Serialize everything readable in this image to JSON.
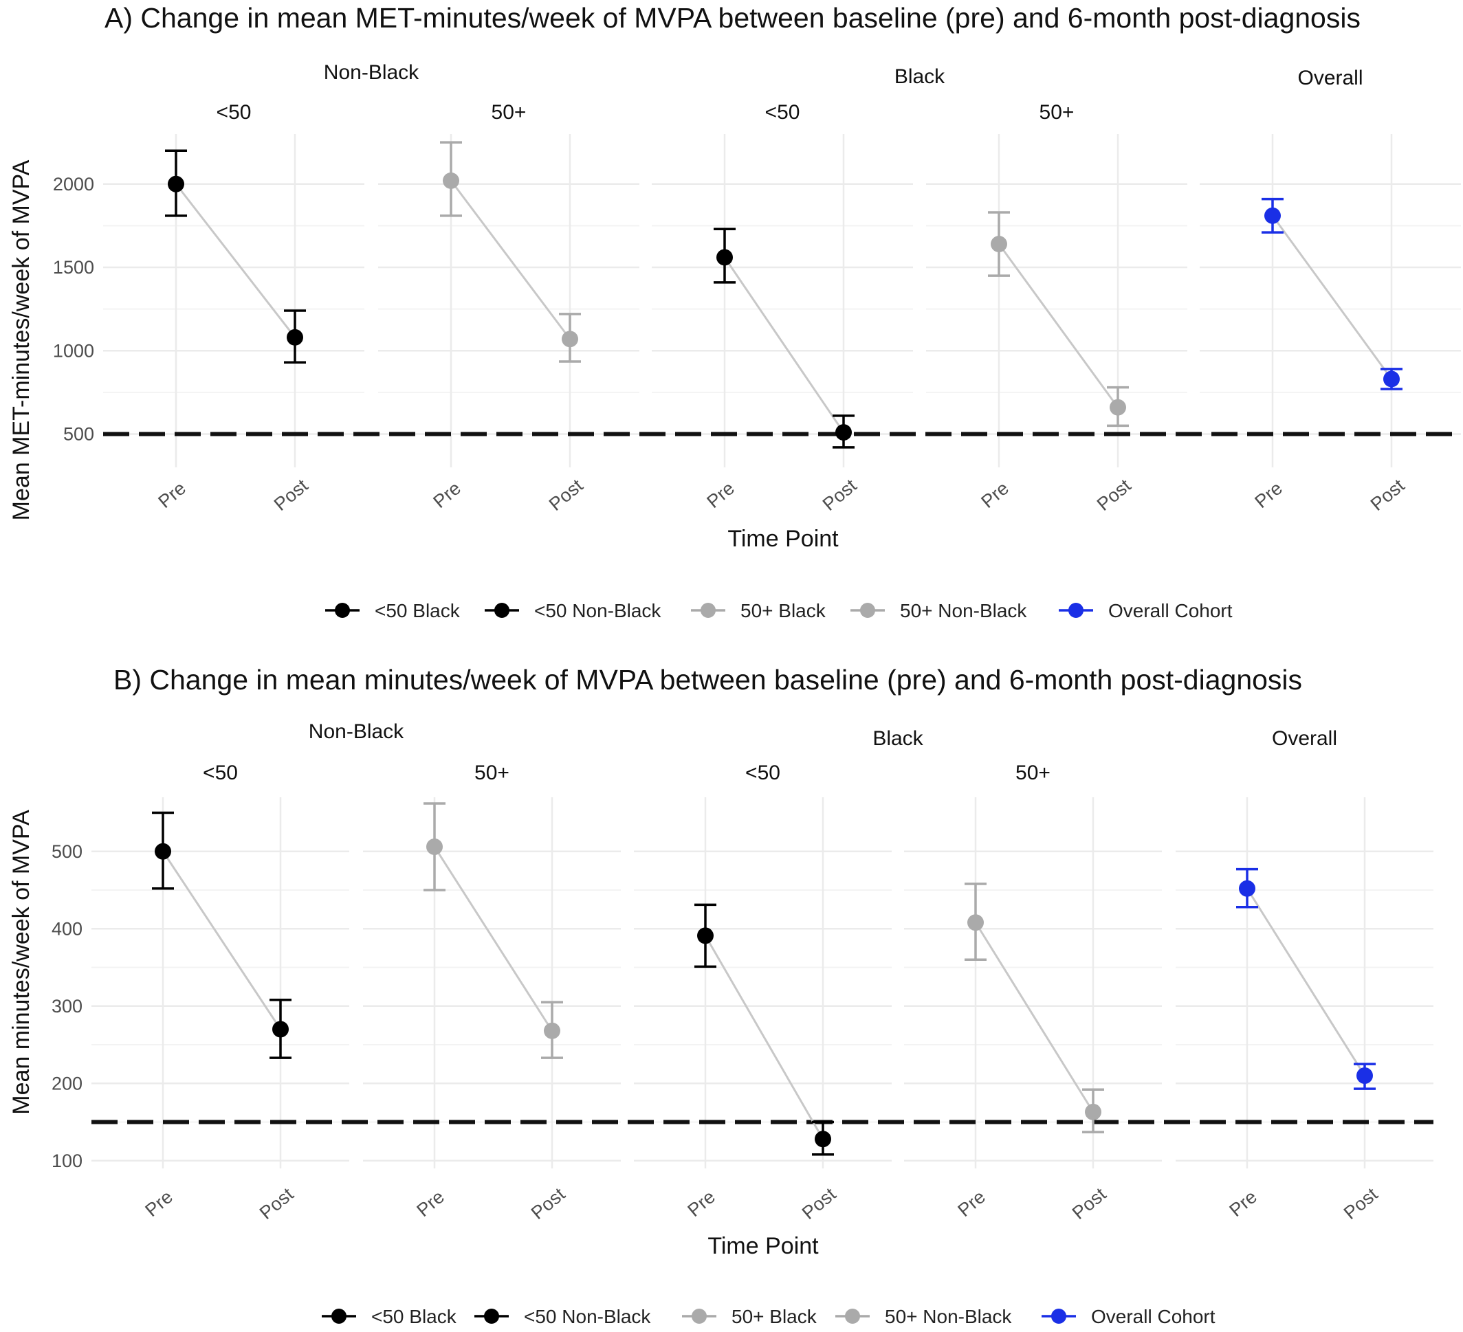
{
  "chart_data": [
    {
      "type": "scatter",
      "title": "A) Change in mean MET-minutes/week of MVPA between baseline (pre) and 6-month post-diagnosis",
      "xlabel": "Time Point",
      "ylabel": "Mean MET-minutes/week of MVPA",
      "categories": [
        "Pre",
        "Post"
      ],
      "ylim": [
        300,
        2300
      ],
      "yticks": [
        "500",
        "1000",
        "1500",
        "2000"
      ],
      "reference_line": 500,
      "groups": [
        {
          "label": "Non-Black",
          "facets": [
            0,
            1
          ]
        },
        {
          "label": "Black",
          "facets": [
            2,
            3
          ]
        },
        {
          "label": "Overall",
          "facets": [
            4
          ]
        }
      ],
      "facets": [
        {
          "label": "<50",
          "series": "<50 Non-Black",
          "color": "#000000",
          "mean": [
            2000,
            1080
          ],
          "lower": [
            1810,
            930
          ],
          "upper": [
            2200,
            1240
          ]
        },
        {
          "label": "50+",
          "series": "50+ Non-Black",
          "color": "#aaaaaa",
          "mean": [
            2020,
            1070
          ],
          "lower": [
            1810,
            935
          ],
          "upper": [
            2250,
            1220
          ]
        },
        {
          "label": "<50",
          "series": "<50 Black",
          "color": "#000000",
          "mean": [
            1560,
            510
          ],
          "lower": [
            1410,
            420
          ],
          "upper": [
            1730,
            610
          ]
        },
        {
          "label": "50+",
          "series": "50+ Black",
          "color": "#aaaaaa",
          "mean": [
            1640,
            660
          ],
          "lower": [
            1450,
            550
          ],
          "upper": [
            1830,
            780
          ]
        },
        {
          "label": "",
          "series": "Overall Cohort",
          "color": "#1a2fe6",
          "mean": [
            1810,
            830
          ],
          "lower": [
            1710,
            770
          ],
          "upper": [
            1910,
            890
          ]
        }
      ]
    },
    {
      "type": "scatter",
      "title": "B) Change in mean minutes/week of MVPA between baseline (pre) and 6-month post-diagnosis",
      "xlabel": "Time Point",
      "ylabel": "Mean minutes/week of MVPA",
      "categories": [
        "Pre",
        "Post"
      ],
      "ylim": [
        90,
        570
      ],
      "yticks": [
        "100",
        "200",
        "300",
        "400",
        "500"
      ],
      "reference_line": 150,
      "groups": [
        {
          "label": "Non-Black",
          "facets": [
            0,
            1
          ]
        },
        {
          "label": "Black",
          "facets": [
            2,
            3
          ]
        },
        {
          "label": "Overall",
          "facets": [
            4
          ]
        }
      ],
      "facets": [
        {
          "label": "<50",
          "series": "<50 Non-Black",
          "color": "#000000",
          "mean": [
            500,
            270
          ],
          "lower": [
            452,
            233
          ],
          "upper": [
            550,
            308
          ]
        },
        {
          "label": "50+",
          "series": "50+ Non-Black",
          "color": "#aaaaaa",
          "mean": [
            506,
            268
          ],
          "lower": [
            450,
            233
          ],
          "upper": [
            562,
            305
          ]
        },
        {
          "label": "<50",
          "series": "<50 Black",
          "color": "#000000",
          "mean": [
            391,
            128
          ],
          "lower": [
            351,
            108
          ],
          "upper": [
            431,
            150
          ]
        },
        {
          "label": "50+",
          "series": "50+ Black",
          "color": "#aaaaaa",
          "mean": [
            408,
            163
          ],
          "lower": [
            360,
            137
          ],
          "upper": [
            458,
            192
          ]
        },
        {
          "label": "",
          "series": "Overall Cohort",
          "color": "#1a2fe6",
          "mean": [
            452,
            210
          ],
          "lower": [
            428,
            193
          ],
          "upper": [
            477,
            225
          ]
        }
      ]
    }
  ],
  "legend": [
    {
      "label": "<50 Black",
      "color": "#000000"
    },
    {
      "label": "<50 Non-Black",
      "color": "#000000"
    },
    {
      "label": "50+ Black",
      "color": "#aaaaaa"
    },
    {
      "label": "50+ Non-Black",
      "color": "#aaaaaa"
    },
    {
      "label": "Overall Cohort",
      "color": "#1a2fe6"
    }
  ]
}
